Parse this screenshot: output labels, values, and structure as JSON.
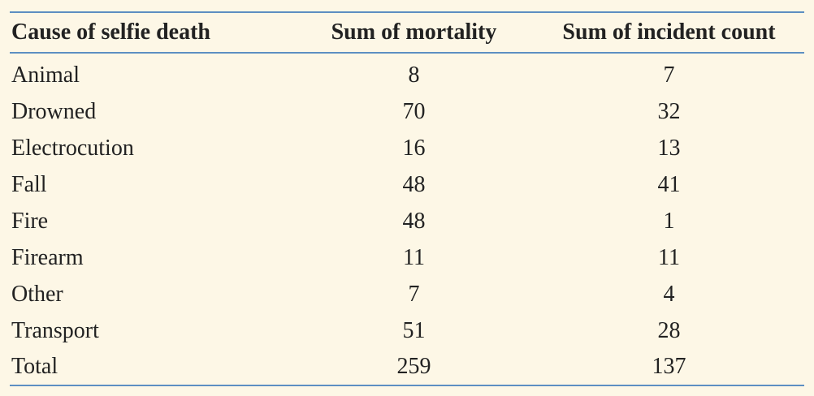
{
  "table": {
    "headers": [
      "Cause of selfie death",
      "Sum of mortality",
      "Sum of incident count"
    ],
    "rows": [
      {
        "cause": "Animal",
        "mortality": "8",
        "incidents": "7"
      },
      {
        "cause": "Drowned",
        "mortality": "70",
        "incidents": "32"
      },
      {
        "cause": "Electrocution",
        "mortality": "16",
        "incidents": "13"
      },
      {
        "cause": "Fall",
        "mortality": "48",
        "incidents": "41"
      },
      {
        "cause": "Fire",
        "mortality": "48",
        "incidents": "1"
      },
      {
        "cause": "Firearm",
        "mortality": "11",
        "incidents": "11"
      },
      {
        "cause": "Other",
        "mortality": "7",
        "incidents": "4"
      },
      {
        "cause": "Transport",
        "mortality": "51",
        "incidents": "28"
      },
      {
        "cause": "Total",
        "mortality": "259",
        "incidents": "137"
      }
    ]
  },
  "colors": {
    "background": "#fdf7e6",
    "rule": "#5d8fc2",
    "text": "#222222"
  }
}
